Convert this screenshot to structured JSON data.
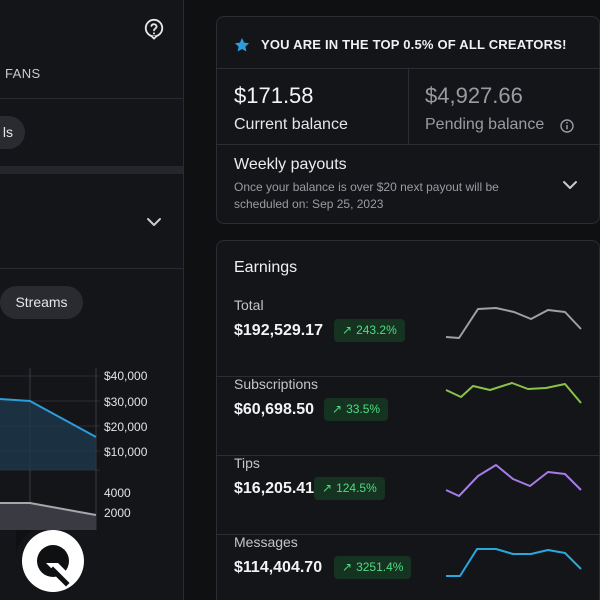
{
  "left": {
    "fans_label": "FANS",
    "chip_partial": "ls",
    "streams_chip": "Streams",
    "ticks_top": [
      "$40,000",
      "$30,000",
      "$20,000",
      "$10,000"
    ],
    "ticks_bottom": [
      "4000",
      "2000"
    ]
  },
  "banner": {
    "text": "YOU ARE IN THE TOP 0.5% OF ALL CREATORS!",
    "icon": "star-icon",
    "accent": "#2d9cdb"
  },
  "balance": {
    "current_amount": "$171.58",
    "current_label": "Current balance",
    "pending_amount": "$4,927.66",
    "pending_label": "Pending balance"
  },
  "payouts": {
    "title": "Weekly payouts",
    "desc_line1": "Once your balance is over $20 next payout will be",
    "desc_line2": "scheduled on: Sep 25, 2023"
  },
  "earnings": {
    "title": "Earnings",
    "rows": [
      {
        "label": "Total",
        "value": "$192,529.17",
        "pct": "243.2%",
        "color": "#9ea0a6"
      },
      {
        "label": "Subscriptions",
        "value": "$60,698.50",
        "pct": "33.5%",
        "color": "#8bc34a"
      },
      {
        "label": "Tips",
        "value": "$16,205.41",
        "pct": "124.5%",
        "color": "#a77ce8"
      },
      {
        "label": "Messages",
        "value": "$114,404.70",
        "pct": "3251.4%",
        "color": "#29a8e0"
      }
    ]
  },
  "colors": {
    "positive": "#4ade80",
    "positive_bg": "#163322",
    "accent_blue": "#2d9cdb"
  }
}
